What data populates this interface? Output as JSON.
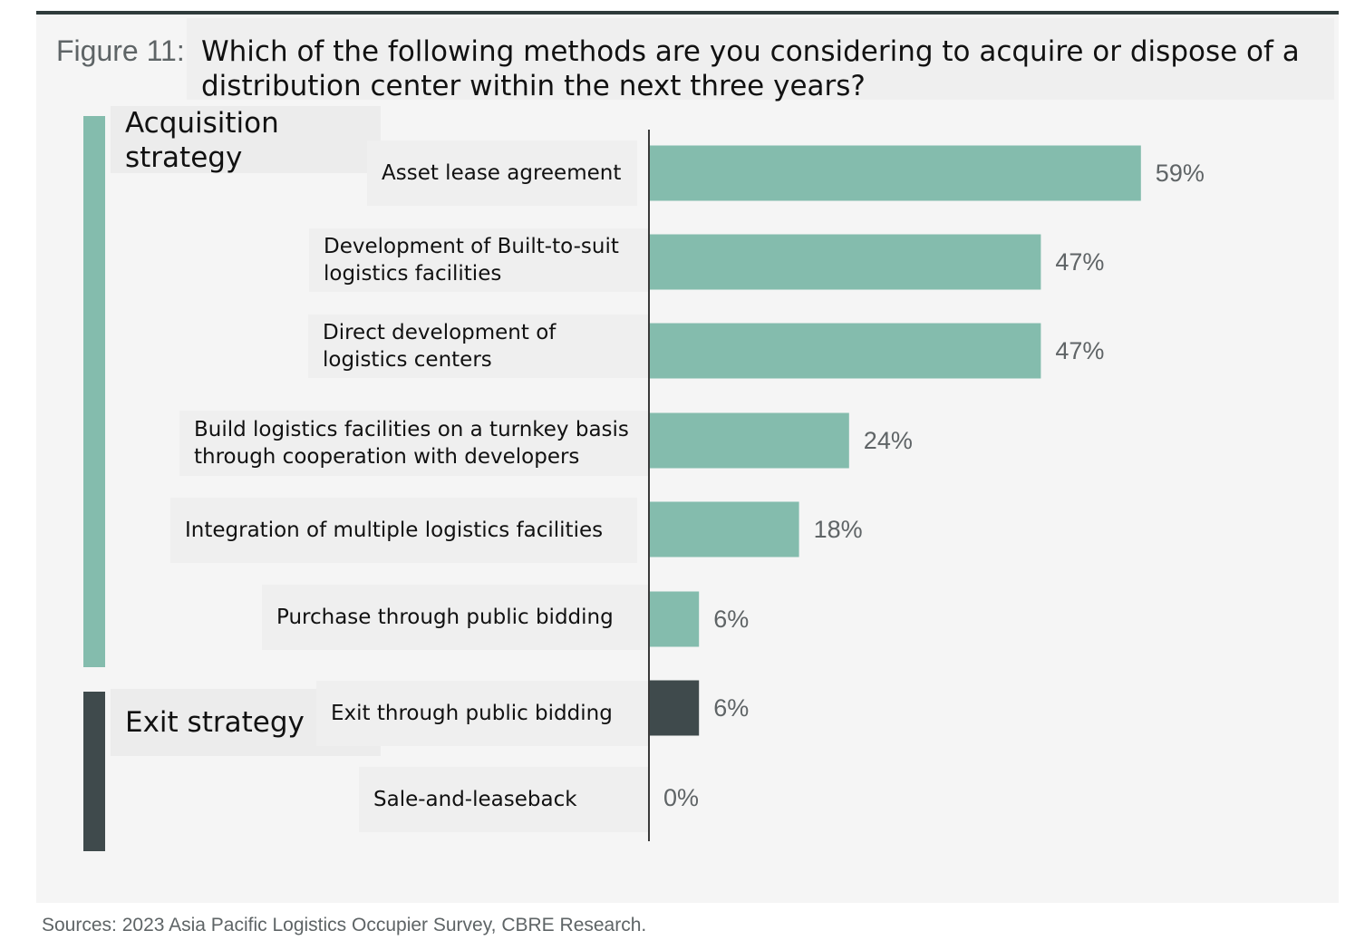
{
  "figure_label": "Figure 11:",
  "figure_title": "Which of the following methods are you considering to acquire or dispose of a distribution center within the next three years?",
  "source": "Sources: 2023 Asia Pacific Logistics Occupier Survey, CBRE Research.",
  "colors": {
    "acquisition": "#84bcad",
    "exit": "#3f4a4c",
    "axis": "#3a3a3a",
    "value_text": "#5f6466"
  },
  "chart_data": {
    "type": "bar",
    "orientation": "horizontal",
    "title": "Which of the following methods are you considering to acquire or dispose of a distribution center within the next three years?",
    "unit": "%",
    "xlim": [
      0,
      100
    ],
    "groups": [
      {
        "name": "Acquisition strategy",
        "color": "#84bcad",
        "categories": [
          "Asset lease agreement",
          "Development of Built-to-suit\nlogistics facilities",
          "Direct development of\nlogistics centers",
          "Build logistics facilities on a turnkey basis\nthrough cooperation with developers",
          "Integration of multiple logistics facilities",
          "Purchase through public bidding"
        ],
        "values": [
          59,
          47,
          47,
          24,
          18,
          6
        ],
        "value_labels": [
          "59%",
          "47%",
          "47%",
          "24%",
          "18%",
          "6%"
        ]
      },
      {
        "name": "Exit strategy",
        "color": "#3f4a4c",
        "categories": [
          "Exit through public bidding",
          "Sale-and-leaseback"
        ],
        "values": [
          6,
          0
        ],
        "value_labels": [
          "6%",
          "0%"
        ]
      }
    ]
  }
}
